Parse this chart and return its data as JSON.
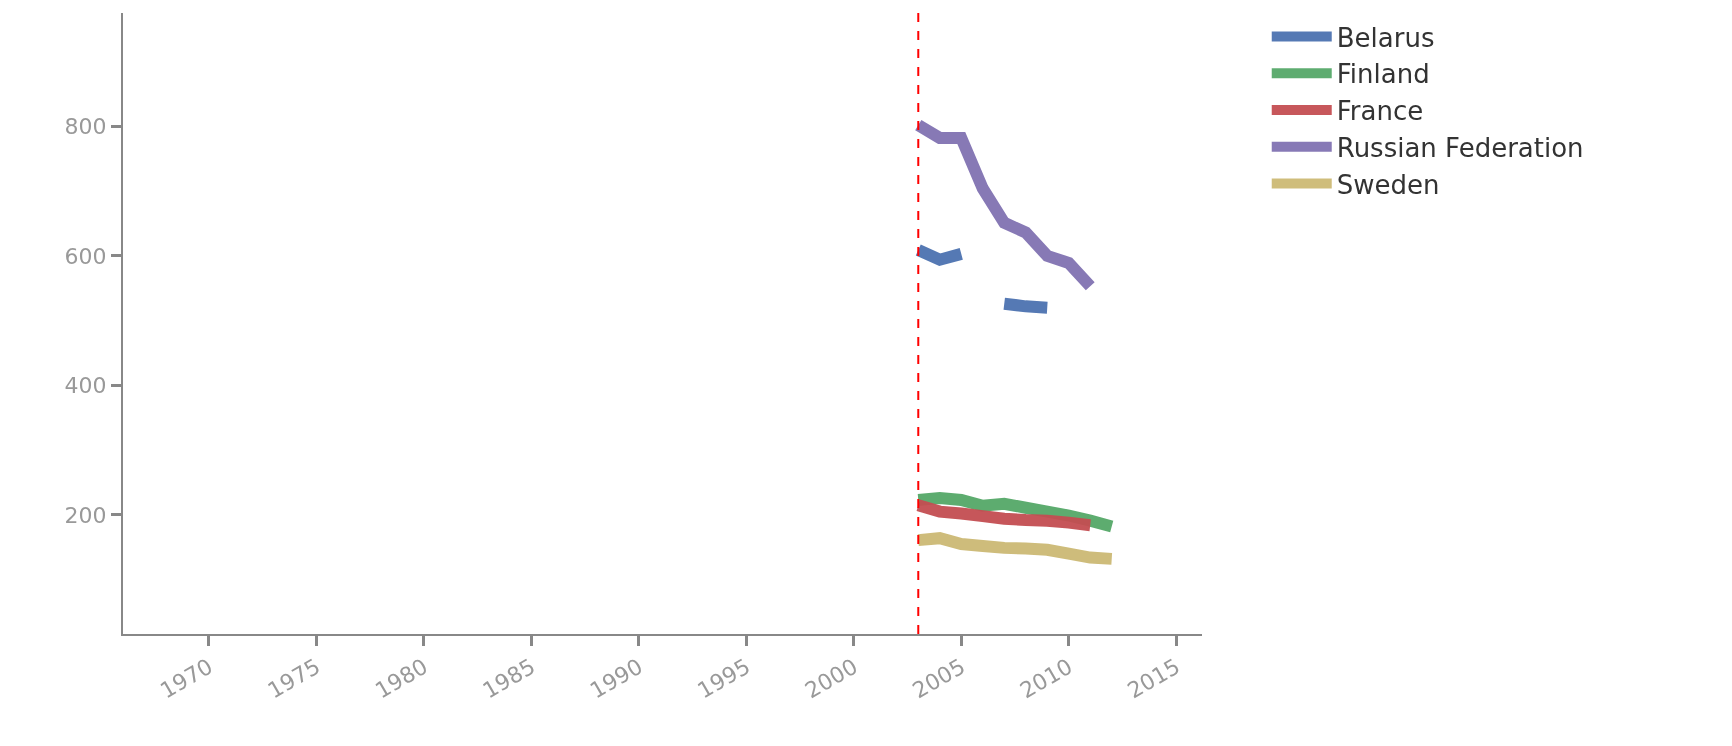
{
  "chart_data": {
    "type": "line",
    "x": [
      2003,
      2004,
      2005,
      2006,
      2007,
      2008,
      2009,
      2010,
      2011,
      2012
    ],
    "series": [
      {
        "name": "Belarus",
        "color": "#4c72b0",
        "values": [
          609,
          594,
          603,
          null,
          526,
          522,
          520,
          null,
          null,
          null
        ]
      },
      {
        "name": "Finland",
        "color": "#55a868",
        "values": [
          223,
          226,
          223,
          214,
          217,
          211,
          205,
          199,
          191,
          182
        ]
      },
      {
        "name": "France",
        "color": "#c44e52",
        "values": [
          215,
          205,
          202,
          198,
          194,
          192,
          191,
          188,
          184,
          null
        ]
      },
      {
        "name": "Russian Federation",
        "color": "#8172b2",
        "values": [
          802,
          782,
          782,
          704,
          651,
          636,
          600,
          589,
          553,
          null
        ]
      },
      {
        "name": "Sweden",
        "color": "#ccb974",
        "values": [
          161,
          164,
          155,
          152,
          149,
          148,
          146,
          140,
          134,
          132
        ]
      }
    ],
    "xlim": [
      1966,
      2016.2
    ],
    "xticks": [
      1970,
      1975,
      1980,
      1985,
      1990,
      1995,
      2000,
      2005,
      2010,
      2015
    ],
    "ylim": [
      16,
      975
    ],
    "yticks": [
      200,
      400,
      600,
      800
    ],
    "ref_lines": [
      {
        "axis": "x",
        "value": 2003,
        "color": "#ff0000",
        "line_style": "dashed"
      }
    ],
    "legend": "top right",
    "marker": "none",
    "line_style": "solid"
  }
}
